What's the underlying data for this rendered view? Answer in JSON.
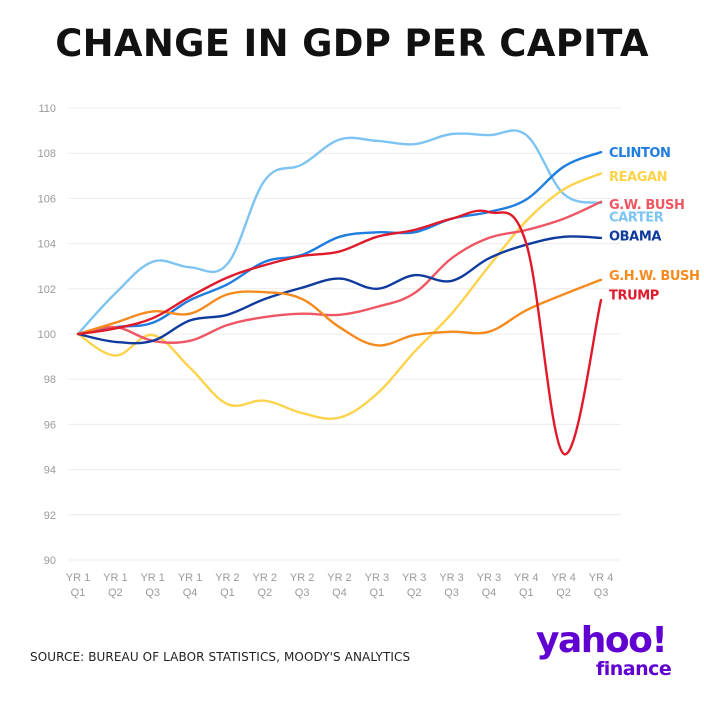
{
  "title": "CHANGE IN GDP PER CAPITA",
  "source": "SOURCE: BUREAU OF LABOR STATISTICS, MOODY'S ANALYTICS",
  "logo": {
    "main": "yahoo!",
    "sub": "finance"
  },
  "chart_data": {
    "type": "line",
    "categories": [
      [
        "YR 1",
        "Q1"
      ],
      [
        "YR 1",
        "Q2"
      ],
      [
        "YR 1",
        "Q3"
      ],
      [
        "YR 1",
        "Q4"
      ],
      [
        "YR 2",
        "Q1"
      ],
      [
        "YR 2",
        "Q2"
      ],
      [
        "YR 2",
        "Q3"
      ],
      [
        "YR 2",
        "Q4"
      ],
      [
        "YR 3",
        "Q1"
      ],
      [
        "YR 3",
        "Q2"
      ],
      [
        "YR 3",
        "Q3"
      ],
      [
        "YR 3",
        "Q4"
      ],
      [
        "YR 4",
        "Q1"
      ],
      [
        "YR 4",
        "Q2"
      ],
      [
        "YR 4",
        "Q3"
      ]
    ],
    "ylim": [
      90,
      110
    ],
    "yticks": [
      90,
      92,
      94,
      96,
      98,
      100,
      102,
      104,
      106,
      108,
      110
    ],
    "grid": true,
    "legend": "direct labels at right end of lines",
    "series": [
      {
        "name": "CARTER",
        "color": "#7dc4f2",
        "values": [
          100,
          101.8,
          103.2,
          102.95,
          103.1,
          106.8,
          107.5,
          108.6,
          108.55,
          108.4,
          108.85,
          108.8,
          108.8,
          106.2,
          105.8
        ]
      },
      {
        "name": "CLINTON",
        "color": "#1f7de0",
        "values": [
          100,
          100.3,
          100.5,
          101.5,
          102.2,
          103.2,
          103.5,
          104.3,
          104.5,
          104.5,
          105.1,
          105.4,
          105.95,
          107.4,
          108.05
        ]
      },
      {
        "name": "REAGAN",
        "color": "#fcd34a",
        "values": [
          100,
          99.05,
          99.95,
          98.5,
          96.9,
          97.05,
          96.5,
          96.3,
          97.35,
          99.2,
          100.9,
          103.0,
          105.0,
          106.4,
          107.1
        ]
      },
      {
        "name": "G.W. BUSH",
        "color": "#ef5663",
        "values": [
          100,
          100.3,
          99.7,
          99.7,
          100.4,
          100.75,
          100.9,
          100.85,
          101.2,
          101.8,
          103.35,
          104.25,
          104.6,
          105.1,
          105.85
        ]
      },
      {
        "name": "OBAMA",
        "color": "#0f3a9e",
        "values": [
          100,
          99.65,
          99.7,
          100.6,
          100.85,
          101.55,
          102.05,
          102.45,
          102.0,
          102.6,
          102.35,
          103.35,
          103.95,
          104.3,
          104.25
        ]
      },
      {
        "name": "G.H.W. BUSH",
        "color": "#f58b1f",
        "values": [
          100,
          100.5,
          101.0,
          100.9,
          101.75,
          101.85,
          101.55,
          100.3,
          99.5,
          99.95,
          100.1,
          100.1,
          101.05,
          101.75,
          102.4
        ]
      },
      {
        "name": "TRUMP",
        "color": "#e01a2b",
        "values": [
          100,
          100.25,
          100.7,
          101.65,
          102.5,
          103.05,
          103.45,
          103.65,
          104.3,
          104.6,
          105.1,
          105.4,
          104.0,
          94.7,
          101.5
        ]
      }
    ],
    "end_labels": [
      {
        "name": "CLINTON",
        "text": "CLINTON",
        "color": "#1f7de0",
        "label_value": 108.05
      },
      {
        "name": "REAGAN",
        "text": "REAGAN",
        "color": "#fcd34a",
        "label_value": 107.0
      },
      {
        "name": "G.W. BUSH",
        "text": "G.W. BUSH",
        "color": "#ef5663",
        "label_value": 105.75
      },
      {
        "name": "CARTER",
        "text": "CARTER",
        "color": "#7dc4f2",
        "label_value": 105.2
      },
      {
        "name": "OBAMA",
        "text": "OBAMA",
        "color": "#0f3a9e",
        "label_value": 104.35
      },
      {
        "name": "G.H.W. BUSH",
        "text": "G.H.W. BUSH",
        "color": "#f58b1f",
        "label_value": 102.6
      },
      {
        "name": "TRUMP",
        "text": "TRUMP",
        "color": "#e01a2b",
        "label_value": 101.75
      }
    ]
  }
}
